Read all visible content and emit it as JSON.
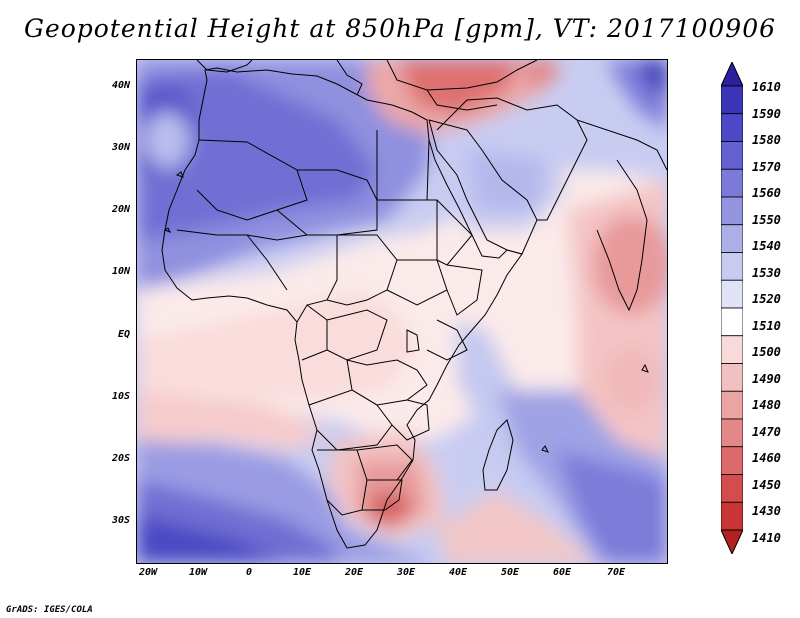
{
  "title": "Geopotential Height at 850hPa [gpm], VT: 2017100906",
  "credit": "GrADS: IGES/COLA",
  "lat_labels": [
    "40N",
    "30N",
    "20N",
    "10N",
    "EQ",
    "10S",
    "20S",
    "30S"
  ],
  "lon_labels": [
    "20W",
    "10W",
    "0",
    "10E",
    "20E",
    "30E",
    "40E",
    "50E",
    "60E",
    "70E"
  ],
  "colorbar": {
    "levels": [
      "1610",
      "1590",
      "1580",
      "1570",
      "1560",
      "1550",
      "1540",
      "1530",
      "1520",
      "1510",
      "1500",
      "1490",
      "1480",
      "1470",
      "1460",
      "1450",
      "1430",
      "1410"
    ],
    "colors": [
      "#2b20a0",
      "#3a34b6",
      "#4d48c6",
      "#6462d2",
      "#7b7ad9",
      "#9394e0",
      "#adb0e8",
      "#c7cbf0",
      "#e0e3f8",
      "#ffffff",
      "#f8dada",
      "#f1c0c0",
      "#eaa4a4",
      "#e38787",
      "#dc6a6a",
      "#d44d4d",
      "#c93535",
      "#b22222"
    ]
  },
  "map": {
    "region": "Africa and surrounding oceans",
    "variable": "850hPa geopotential height"
  }
}
